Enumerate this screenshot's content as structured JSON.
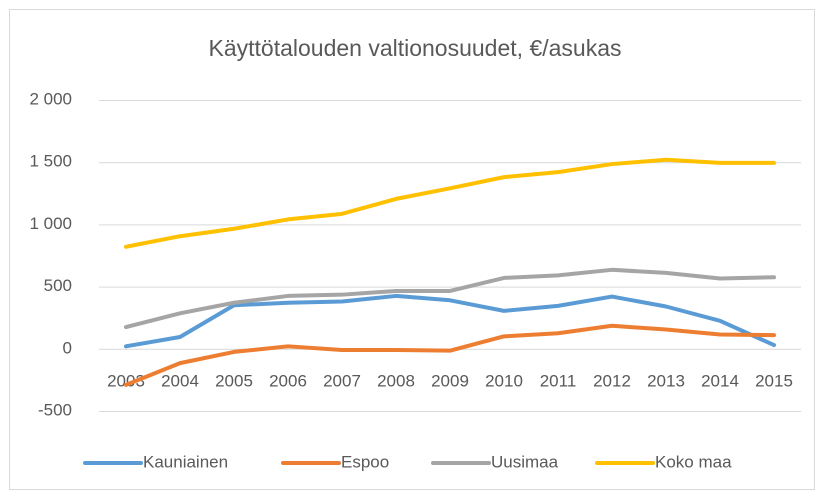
{
  "chart_data": {
    "type": "line",
    "title": "Käyttötalouden valtionosuudet, €/asukas",
    "categories": [
      "2003",
      "2004",
      "2005",
      "2006",
      "2007",
      "2008",
      "2009",
      "2010",
      "2011",
      "2012",
      "2013",
      "2014",
      "2015"
    ],
    "series": [
      {
        "name": "Kauniainen",
        "color": "#5b9bd5",
        "values": [
          20,
          95,
          350,
          370,
          380,
          425,
          390,
          305,
          345,
          420,
          340,
          225,
          30
        ]
      },
      {
        "name": "Espoo",
        "color": "#ed7d31",
        "values": [
          -290,
          -115,
          -25,
          20,
          -10,
          -10,
          -15,
          100,
          125,
          185,
          155,
          115,
          110
        ]
      },
      {
        "name": "Uusimaa",
        "color": "#a5a5a5",
        "values": [
          175,
          285,
          370,
          425,
          435,
          465,
          465,
          570,
          590,
          635,
          610,
          565,
          575
        ]
      },
      {
        "name": "Koko maa",
        "color": "#ffc000",
        "values": [
          820,
          905,
          965,
          1040,
          1085,
          1205,
          1290,
          1380,
          1420,
          1485,
          1520,
          1495,
          1495
        ]
      }
    ],
    "ylim": [
      -500,
      2000
    ],
    "yticks": [
      -500,
      0,
      500,
      {
        "value": 1000,
        "label": "1 000"
      },
      {
        "value": 1500,
        "label": "1 500"
      },
      {
        "value": 2000,
        "label": "2 000"
      }
    ],
    "grid": true,
    "legend": "bottom"
  }
}
